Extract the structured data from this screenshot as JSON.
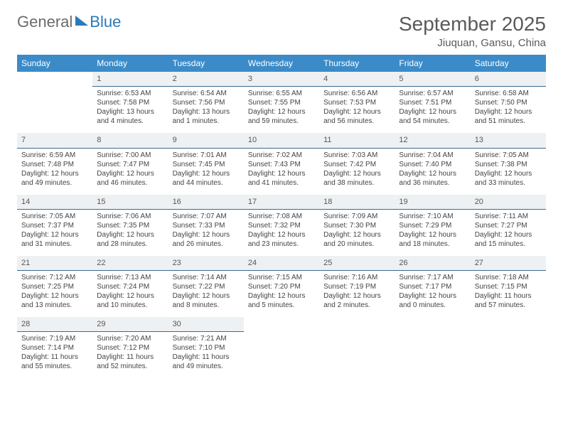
{
  "logo": {
    "text1": "General",
    "text2": "Blue"
  },
  "title": "September 2025",
  "location": "Jiuquan, Gansu, China",
  "weekdays": [
    "Sunday",
    "Monday",
    "Tuesday",
    "Wednesday",
    "Thursday",
    "Friday",
    "Saturday"
  ],
  "styling": {
    "page_bg": "#ffffff",
    "header_bg": "#3b8bc8",
    "header_text": "#ffffff",
    "daynum_bg": "#eef1f3",
    "daynum_border": "#3b6a8f",
    "body_text": "#444444",
    "title_color": "#5a5a5a",
    "logo_gray": "#6b6b6b",
    "logo_blue": "#2a7ab8",
    "font_family": "Arial",
    "title_fontsize": 28,
    "header_fontsize": 12,
    "cell_fontsize": 10
  },
  "weeks": [
    [
      null,
      {
        "n": "1",
        "sr": "Sunrise: 6:53 AM",
        "ss": "Sunset: 7:58 PM",
        "d1": "Daylight: 13 hours",
        "d2": "and 4 minutes."
      },
      {
        "n": "2",
        "sr": "Sunrise: 6:54 AM",
        "ss": "Sunset: 7:56 PM",
        "d1": "Daylight: 13 hours",
        "d2": "and 1 minutes."
      },
      {
        "n": "3",
        "sr": "Sunrise: 6:55 AM",
        "ss": "Sunset: 7:55 PM",
        "d1": "Daylight: 12 hours",
        "d2": "and 59 minutes."
      },
      {
        "n": "4",
        "sr": "Sunrise: 6:56 AM",
        "ss": "Sunset: 7:53 PM",
        "d1": "Daylight: 12 hours",
        "d2": "and 56 minutes."
      },
      {
        "n": "5",
        "sr": "Sunrise: 6:57 AM",
        "ss": "Sunset: 7:51 PM",
        "d1": "Daylight: 12 hours",
        "d2": "and 54 minutes."
      },
      {
        "n": "6",
        "sr": "Sunrise: 6:58 AM",
        "ss": "Sunset: 7:50 PM",
        "d1": "Daylight: 12 hours",
        "d2": "and 51 minutes."
      }
    ],
    [
      {
        "n": "7",
        "sr": "Sunrise: 6:59 AM",
        "ss": "Sunset: 7:48 PM",
        "d1": "Daylight: 12 hours",
        "d2": "and 49 minutes."
      },
      {
        "n": "8",
        "sr": "Sunrise: 7:00 AM",
        "ss": "Sunset: 7:47 PM",
        "d1": "Daylight: 12 hours",
        "d2": "and 46 minutes."
      },
      {
        "n": "9",
        "sr": "Sunrise: 7:01 AM",
        "ss": "Sunset: 7:45 PM",
        "d1": "Daylight: 12 hours",
        "d2": "and 44 minutes."
      },
      {
        "n": "10",
        "sr": "Sunrise: 7:02 AM",
        "ss": "Sunset: 7:43 PM",
        "d1": "Daylight: 12 hours",
        "d2": "and 41 minutes."
      },
      {
        "n": "11",
        "sr": "Sunrise: 7:03 AM",
        "ss": "Sunset: 7:42 PM",
        "d1": "Daylight: 12 hours",
        "d2": "and 38 minutes."
      },
      {
        "n": "12",
        "sr": "Sunrise: 7:04 AM",
        "ss": "Sunset: 7:40 PM",
        "d1": "Daylight: 12 hours",
        "d2": "and 36 minutes."
      },
      {
        "n": "13",
        "sr": "Sunrise: 7:05 AM",
        "ss": "Sunset: 7:38 PM",
        "d1": "Daylight: 12 hours",
        "d2": "and 33 minutes."
      }
    ],
    [
      {
        "n": "14",
        "sr": "Sunrise: 7:05 AM",
        "ss": "Sunset: 7:37 PM",
        "d1": "Daylight: 12 hours",
        "d2": "and 31 minutes."
      },
      {
        "n": "15",
        "sr": "Sunrise: 7:06 AM",
        "ss": "Sunset: 7:35 PM",
        "d1": "Daylight: 12 hours",
        "d2": "and 28 minutes."
      },
      {
        "n": "16",
        "sr": "Sunrise: 7:07 AM",
        "ss": "Sunset: 7:33 PM",
        "d1": "Daylight: 12 hours",
        "d2": "and 26 minutes."
      },
      {
        "n": "17",
        "sr": "Sunrise: 7:08 AM",
        "ss": "Sunset: 7:32 PM",
        "d1": "Daylight: 12 hours",
        "d2": "and 23 minutes."
      },
      {
        "n": "18",
        "sr": "Sunrise: 7:09 AM",
        "ss": "Sunset: 7:30 PM",
        "d1": "Daylight: 12 hours",
        "d2": "and 20 minutes."
      },
      {
        "n": "19",
        "sr": "Sunrise: 7:10 AM",
        "ss": "Sunset: 7:29 PM",
        "d1": "Daylight: 12 hours",
        "d2": "and 18 minutes."
      },
      {
        "n": "20",
        "sr": "Sunrise: 7:11 AM",
        "ss": "Sunset: 7:27 PM",
        "d1": "Daylight: 12 hours",
        "d2": "and 15 minutes."
      }
    ],
    [
      {
        "n": "21",
        "sr": "Sunrise: 7:12 AM",
        "ss": "Sunset: 7:25 PM",
        "d1": "Daylight: 12 hours",
        "d2": "and 13 minutes."
      },
      {
        "n": "22",
        "sr": "Sunrise: 7:13 AM",
        "ss": "Sunset: 7:24 PM",
        "d1": "Daylight: 12 hours",
        "d2": "and 10 minutes."
      },
      {
        "n": "23",
        "sr": "Sunrise: 7:14 AM",
        "ss": "Sunset: 7:22 PM",
        "d1": "Daylight: 12 hours",
        "d2": "and 8 minutes."
      },
      {
        "n": "24",
        "sr": "Sunrise: 7:15 AM",
        "ss": "Sunset: 7:20 PM",
        "d1": "Daylight: 12 hours",
        "d2": "and 5 minutes."
      },
      {
        "n": "25",
        "sr": "Sunrise: 7:16 AM",
        "ss": "Sunset: 7:19 PM",
        "d1": "Daylight: 12 hours",
        "d2": "and 2 minutes."
      },
      {
        "n": "26",
        "sr": "Sunrise: 7:17 AM",
        "ss": "Sunset: 7:17 PM",
        "d1": "Daylight: 12 hours",
        "d2": "and 0 minutes."
      },
      {
        "n": "27",
        "sr": "Sunrise: 7:18 AM",
        "ss": "Sunset: 7:15 PM",
        "d1": "Daylight: 11 hours",
        "d2": "and 57 minutes."
      }
    ],
    [
      {
        "n": "28",
        "sr": "Sunrise: 7:19 AM",
        "ss": "Sunset: 7:14 PM",
        "d1": "Daylight: 11 hours",
        "d2": "and 55 minutes."
      },
      {
        "n": "29",
        "sr": "Sunrise: 7:20 AM",
        "ss": "Sunset: 7:12 PM",
        "d1": "Daylight: 11 hours",
        "d2": "and 52 minutes."
      },
      {
        "n": "30",
        "sr": "Sunrise: 7:21 AM",
        "ss": "Sunset: 7:10 PM",
        "d1": "Daylight: 11 hours",
        "d2": "and 49 minutes."
      },
      null,
      null,
      null,
      null
    ]
  ]
}
